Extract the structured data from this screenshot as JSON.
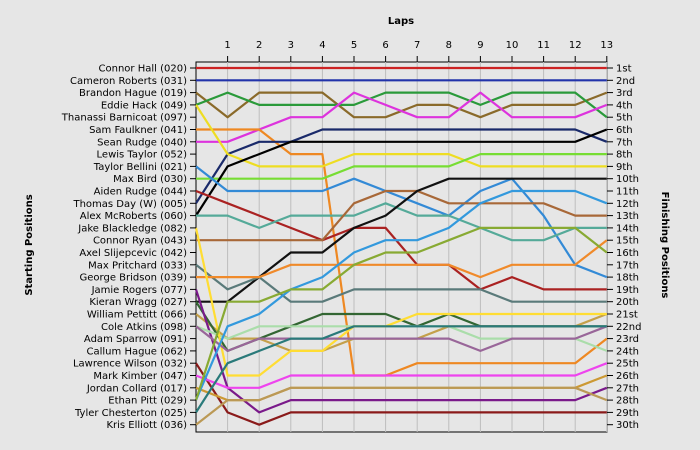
{
  "chart_data": {
    "type": "line",
    "title": "",
    "xlabel": "Laps",
    "ylabel_left": "Starting Positions",
    "ylabel_right": "Finishing Positions",
    "laps": [
      "1",
      "2",
      "3",
      "4",
      "5",
      "6",
      "7",
      "8",
      "9",
      "10",
      "11",
      "12",
      "13"
    ],
    "xlim": [
      0,
      13
    ],
    "ylim": [
      30,
      1
    ],
    "grid": true,
    "starting_grid": [
      "Connor Hall (020)",
      "Cameron Roberts (031)",
      "Brandon Hague (019)",
      "Eddie Hack (049)",
      "Thanassi Barnicoat (097)",
      "Sam Faulkner (041)",
      "Sean Rudge (040)",
      "Lewis Taylor (052)",
      "Taylor Bellini (021)",
      "Max Bird (030)",
      "Aiden Rudge (044)",
      "Thomas Day (W) (005)",
      "Alex McRoberts (060)",
      "Jake Blackledge (082)",
      "Connor Ryan (043)",
      "Axel Slijepcevic (042)",
      "Max Pritchard (033)",
      "George Bridson (039)",
      "Jamie Rogers (077)",
      "Kieran Wragg (027)",
      "William Pettitt (066)",
      "Cole Atkins (098)",
      "Adam Sparrow (091)",
      "Callum Hague (062)",
      "Lawrence Wilson (032)",
      "Mark Kimber (047)",
      "Jordan Collard (017)",
      "Ethan Pitt (029)",
      "Tyler Chesterton (025)",
      "Kris Elliott (036)"
    ],
    "finishing_positions": [
      "1st",
      "2nd",
      "3rd",
      "4th",
      "5th",
      "6th",
      "7th",
      "8th",
      "9th",
      "10th",
      "11th",
      "12th",
      "13th",
      "14th",
      "15th",
      "16th",
      "17th",
      "18th",
      "19th",
      "20th",
      "21st",
      "22nd",
      "23rd",
      "24th",
      "25th",
      "26th",
      "27th",
      "28th",
      "29th",
      "30th"
    ],
    "series": [
      {
        "color": "#cc2222",
        "values": [
          1,
          1,
          1,
          1,
          1,
          1,
          1,
          1,
          1,
          1,
          1,
          1,
          1,
          1
        ]
      },
      {
        "color": "#2233aa",
        "values": [
          2,
          2,
          2,
          2,
          2,
          2,
          2,
          2,
          2,
          2,
          2,
          2,
          2,
          2
        ]
      },
      {
        "color": "#8a6a2a",
        "values": [
          3,
          5,
          3,
          3,
          3,
          5,
          5,
          4,
          4,
          5,
          4,
          4,
          4,
          3
        ]
      },
      {
        "color": "#2a9a3a",
        "values": [
          4,
          3,
          4,
          4,
          4,
          4,
          3,
          3,
          3,
          4,
          3,
          3,
          3,
          5
        ]
      },
      {
        "color": "#dd33dd",
        "values": [
          7,
          7,
          6,
          5,
          5,
          3,
          4,
          5,
          5,
          3,
          5,
          5,
          5,
          4
        ]
      },
      {
        "color": "#ee8822",
        "values": [
          6,
          6,
          6,
          8,
          8,
          26,
          26,
          25,
          25,
          25,
          25,
          25,
          25,
          23
        ]
      },
      {
        "color": "#1a2a6a",
        "values": [
          12,
          8,
          7,
          7,
          6,
          6,
          6,
          6,
          6,
          6,
          6,
          6,
          6,
          7
        ]
      },
      {
        "color": "#eedd22",
        "values": [
          4,
          8,
          9,
          9,
          9,
          8,
          8,
          8,
          8,
          9,
          9,
          9,
          9,
          9
        ]
      },
      {
        "color": "#77dd33",
        "values": [
          10,
          10,
          10,
          10,
          10,
          9,
          9,
          9,
          9,
          8,
          8,
          8,
          8,
          8
        ]
      },
      {
        "color": "#000000",
        "values": [
          13,
          9,
          8,
          7,
          7,
          7,
          7,
          7,
          7,
          7,
          7,
          7,
          7,
          6
        ]
      },
      {
        "color": "#338ad6",
        "values": [
          9,
          11,
          11,
          11,
          11,
          10,
          11,
          12,
          13,
          11,
          10,
          13,
          17,
          18
        ]
      },
      {
        "color": "#aa2222",
        "values": [
          11,
          12,
          13,
          14,
          15,
          14,
          14,
          17,
          17,
          19,
          18,
          19,
          19,
          19
        ]
      },
      {
        "color": "#55aa99",
        "values": [
          13,
          13,
          14,
          13,
          13,
          13,
          12,
          13,
          13,
          14,
          15,
          15,
          14,
          14
        ]
      },
      {
        "color": "#a86838",
        "values": [
          15,
          15,
          15,
          15,
          15,
          12,
          11,
          11,
          12,
          12,
          12,
          12,
          13,
          13
        ]
      },
      {
        "color": "#111111",
        "values": [
          20,
          20,
          18,
          16,
          16,
          14,
          13,
          11,
          10,
          10,
          10,
          10,
          10,
          10
        ]
      },
      {
        "color": "#c4a04a",
        "values": [
          21,
          23,
          23,
          24,
          24,
          23,
          23,
          23,
          22,
          22,
          22,
          22,
          22,
          21
        ]
      },
      {
        "color": "#5a7a7a",
        "values": [
          17,
          19,
          18,
          20,
          20,
          19,
          19,
          19,
          19,
          19,
          20,
          20,
          20,
          20
        ]
      },
      {
        "color": "#f08a2a",
        "values": [
          18,
          18,
          18,
          17,
          17,
          17,
          17,
          17,
          17,
          18,
          17,
          17,
          17,
          15
        ]
      },
      {
        "color": "#336633",
        "values": [
          20,
          24,
          23,
          22,
          21,
          21,
          21,
          22,
          21,
          22,
          22,
          22,
          22,
          22
        ]
      },
      {
        "color": "#7a1a8a",
        "values": [
          19,
          27,
          29,
          28,
          28,
          28,
          28,
          28,
          28,
          28,
          28,
          28,
          28,
          27
        ]
      },
      {
        "color": "#aaddaa",
        "values": [
          22,
          23,
          22,
          22,
          22,
          22,
          22,
          22,
          22,
          23,
          23,
          23,
          23,
          24
        ]
      },
      {
        "color": "#ffdd33",
        "values": [
          14,
          26,
          26,
          24,
          24,
          22,
          22,
          21,
          21,
          21,
          21,
          21,
          21,
          21
        ]
      },
      {
        "color": "#996699",
        "values": [
          22,
          24,
          23,
          23,
          23,
          23,
          23,
          23,
          23,
          24,
          23,
          23,
          23,
          22
        ]
      },
      {
        "color": "#8a1a1a",
        "values": [
          25,
          29,
          30,
          29,
          29,
          29,
          29,
          29,
          29,
          29,
          29,
          29,
          29,
          29
        ]
      },
      {
        "color": "#cc9933",
        "values": [
          27,
          28,
          28,
          27,
          27,
          27,
          27,
          27,
          27,
          27,
          27,
          27,
          27,
          26
        ]
      },
      {
        "color": "#ee44ee",
        "values": [
          26,
          27,
          27,
          26,
          26,
          26,
          26,
          26,
          26,
          26,
          26,
          26,
          26,
          25
        ]
      },
      {
        "color": "#3399dd",
        "values": [
          28,
          22,
          21,
          19,
          18,
          16,
          15,
          15,
          14,
          12,
          11,
          11,
          11,
          12
        ]
      },
      {
        "color": "#88aa33",
        "values": [
          28,
          20,
          20,
          19,
          19,
          17,
          16,
          16,
          15,
          14,
          14,
          14,
          14,
          16
        ]
      },
      {
        "color": "#2a7a7a",
        "values": [
          29,
          25,
          24,
          23,
          23,
          22,
          22,
          22,
          22,
          22,
          22,
          22,
          22,
          22
        ]
      },
      {
        "color": "#bb9955",
        "values": [
          30,
          28,
          28,
          27,
          27,
          27,
          27,
          27,
          27,
          27,
          27,
          27,
          27,
          28
        ]
      }
    ]
  }
}
